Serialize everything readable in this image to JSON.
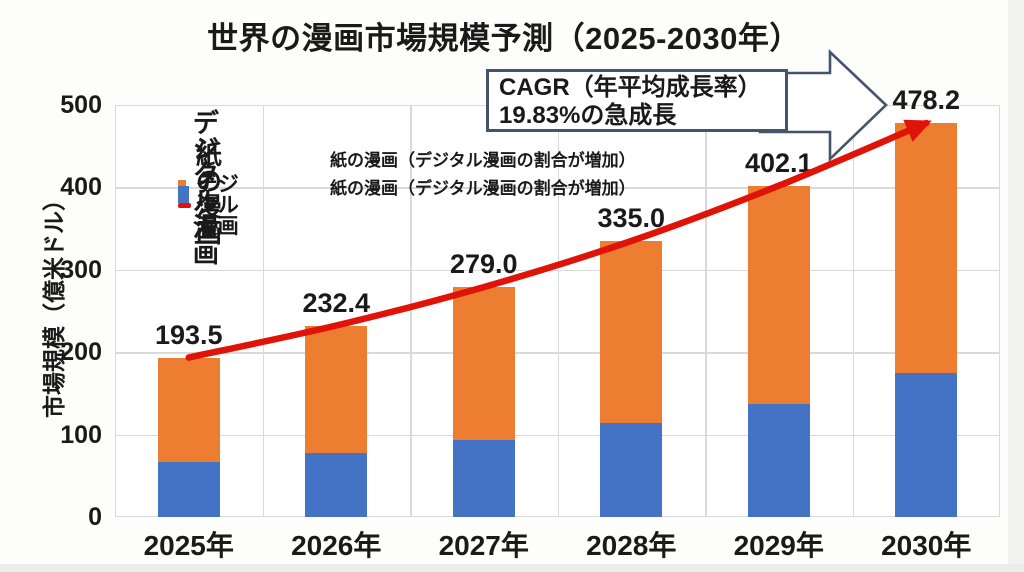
{
  "title": "世界の漫画市場規模予測（2025-2030年）",
  "y_axis": {
    "label": "市場規模（億米ドル）",
    "ticks": [
      0,
      100,
      200,
      300,
      400,
      500
    ]
  },
  "legend": {
    "items": [
      {
        "label": "デジタル漫画",
        "swatch": "orange-rect",
        "color": "#ED7D31",
        "note": ""
      },
      {
        "label": "紙の漫画",
        "swatch": "blue-rect",
        "color": "#4472C4",
        "note": "紙の漫画（デジタル漫画の割合が増加）"
      },
      {
        "label": "デジタル漫画",
        "swatch": "red-line",
        "color": "#E01308",
        "note": "紙の漫画（デジタル漫画の割合が増加）"
      }
    ]
  },
  "callout": {
    "line1": "CAGR（年平均成長率）",
    "line2": "19.83%の急成長"
  },
  "chart_data": {
    "type": "bar",
    "stacked": true,
    "title": "世界の漫画市場規模予測（2025-2030年）",
    "ylabel": "市場規模（億米ドル）",
    "categories": [
      "2025年",
      "2026年",
      "2027年",
      "2028年",
      "2029年",
      "2030年"
    ],
    "series": [
      {
        "name": "紙の漫画",
        "color": "#4472C4",
        "values": [
          67,
          78,
          93,
          114,
          137,
          175
        ]
      },
      {
        "name": "デジタル漫画",
        "color": "#ED7D31",
        "values": [
          126.5,
          154.4,
          186.0,
          221.0,
          265.1,
          303.2
        ]
      }
    ],
    "totals": [
      193.5,
      232.4,
      279.0,
      335.0,
      402.1,
      478.2
    ],
    "total_labels": [
      "193.5",
      "232.4",
      "279.0",
      "335.0",
      "402.1",
      "478.2"
    ],
    "trend_line": {
      "name": "デジタル漫画",
      "color": "#E01308",
      "follows": "totals"
    },
    "ylim": [
      0,
      500
    ],
    "grid": true,
    "legend_position": "top-left"
  },
  "colors": {
    "digital_orange": "#ED7D31",
    "paper_blue": "#4472C4",
    "trend_red": "#E01308",
    "callout_outline": "#44546A",
    "gridline": "#D9D9D9"
  }
}
